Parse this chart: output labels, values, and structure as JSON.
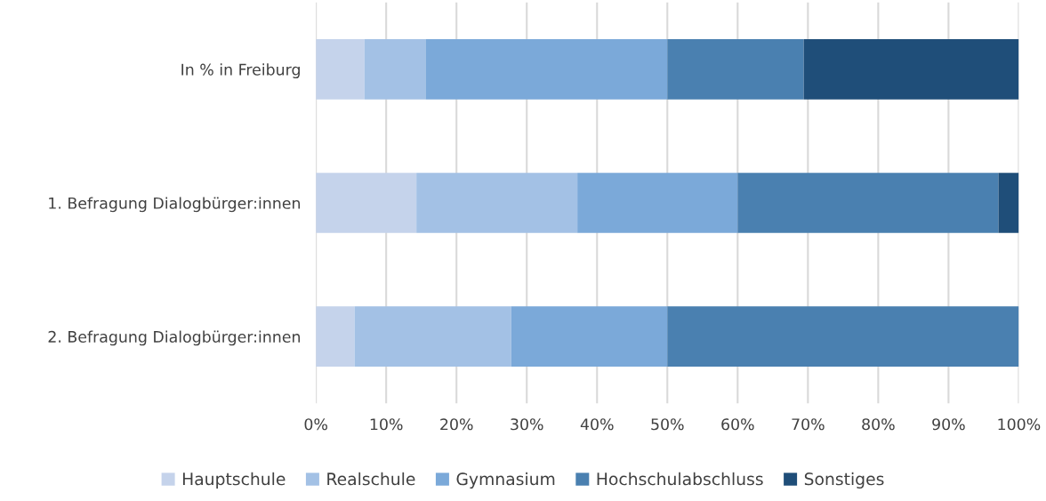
{
  "chart_data": {
    "type": "bar",
    "orientation": "horizontal",
    "stacked": true,
    "categories": [
      "In % in Freiburg",
      "1. Befragung Dialogbürger:innen",
      "2. Befragung Dialogbürger:innen"
    ],
    "series": [
      {
        "name": "Hauptschule",
        "color": "#c5d3eb",
        "values": [
          6.9,
          14.3,
          5.5
        ]
      },
      {
        "name": "Realschule",
        "color": "#a3c1e5",
        "values": [
          8.7,
          22.9,
          22.3
        ]
      },
      {
        "name": "Gymnasium",
        "color": "#7ba9d9",
        "values": [
          34.4,
          22.8,
          22.2
        ]
      },
      {
        "name": "Hochschulabschluss",
        "color": "#4a80b0",
        "values": [
          19.4,
          37.1,
          50.0
        ]
      },
      {
        "name": "Sonstiges",
        "color": "#1f4e79",
        "values": [
          30.6,
          2.9,
          0
        ]
      }
    ],
    "xlim": [
      0,
      100
    ],
    "xticks": [
      {
        "value": 0,
        "label": "0%"
      },
      {
        "value": 10,
        "label": "10%"
      },
      {
        "value": 20,
        "label": "20%"
      },
      {
        "value": 30,
        "label": "30%"
      },
      {
        "value": 40,
        "label": "40%"
      },
      {
        "value": 50,
        "label": "50%"
      },
      {
        "value": 60,
        "label": "60%"
      },
      {
        "value": 70,
        "label": "70%"
      },
      {
        "value": 80,
        "label": "80%"
      },
      {
        "value": 90,
        "label": "90%"
      },
      {
        "value": 100,
        "label": "100%"
      }
    ],
    "grid": "x",
    "legend": "bottom"
  }
}
